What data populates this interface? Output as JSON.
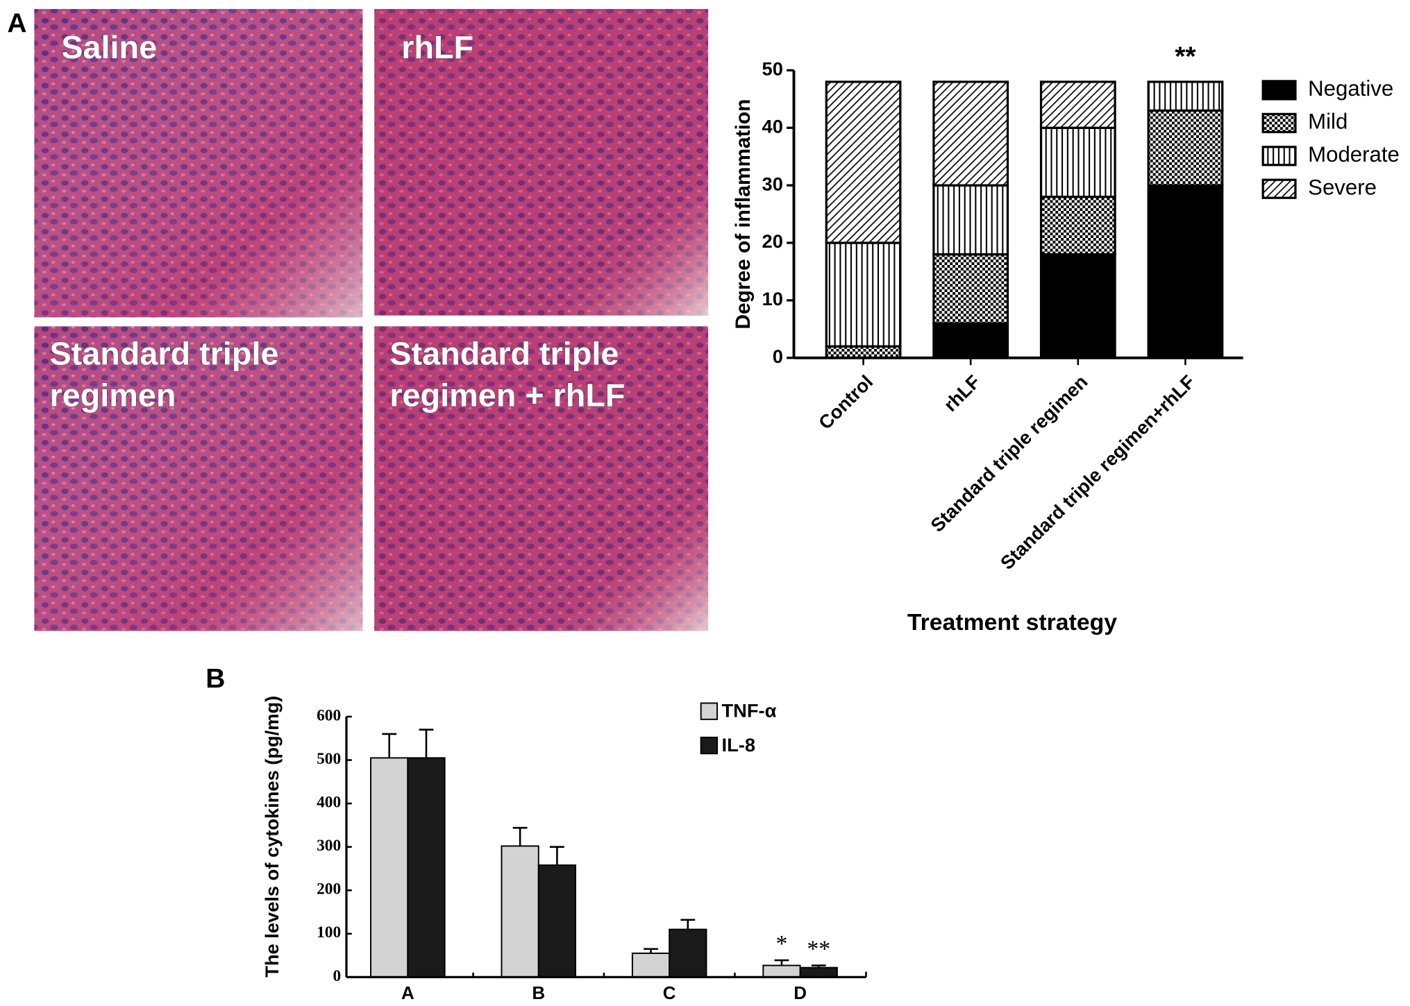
{
  "figure": {
    "panel_labels": [
      "A",
      "B"
    ],
    "images": [
      {
        "label_lines": [
          "Saline"
        ]
      },
      {
        "label_lines": [
          "rhLF"
        ]
      },
      {
        "label_lines": [
          "Standard triple",
          "regimen"
        ]
      },
      {
        "label_lines": [
          "Standard triple",
          "regimen  + rhLF"
        ]
      }
    ]
  },
  "chart_data": [
    {
      "type": "stacked_bar",
      "ylabel": "Degree of inflammation",
      "xlabel": "Treatment strategy",
      "categories": [
        "Control",
        "rhLF",
        "Standard triple regimen",
        "Standard triple regimen+rhLF"
      ],
      "series": [
        {
          "name": "Negative",
          "color": "#000000",
          "pattern": "solid",
          "values": [
            0,
            6,
            18,
            30
          ]
        },
        {
          "name": "Mild",
          "color": "#000000",
          "pattern": "checker",
          "values": [
            2,
            12,
            10,
            13
          ]
        },
        {
          "name": "Moderate",
          "color": "#000000",
          "pattern": "vertical",
          "values": [
            18,
            12,
            12,
            5
          ]
        },
        {
          "name": "Severe",
          "color": "#000000",
          "pattern": "diagonal",
          "values": [
            28,
            18,
            8,
            0
          ]
        }
      ],
      "ylim": [
        0,
        50
      ],
      "yticks": [
        0,
        10,
        20,
        30,
        40,
        50
      ],
      "legend": "right",
      "annotations": [
        {
          "category": "Standard triple regimen+rhLF",
          "text": "**"
        }
      ]
    },
    {
      "type": "grouped_bar",
      "ylabel": "The levels of cytokines (pg/mg)",
      "categories": [
        "A",
        "B",
        "C",
        "D"
      ],
      "series": [
        {
          "name": "TNF-α",
          "color": "#d3d3d3",
          "values": [
            505,
            302,
            55,
            27
          ],
          "errors": [
            55,
            42,
            10,
            12
          ]
        },
        {
          "name": "IL-8",
          "color": "#1a1a1a",
          "values": [
            505,
            258,
            110,
            22
          ],
          "errors": [
            65,
            42,
            22,
            5
          ]
        }
      ],
      "ylim": [
        0,
        600
      ],
      "yticks": [
        0,
        100,
        200,
        300,
        400,
        500,
        600
      ],
      "legend": "top-right",
      "annotations": [
        {
          "category": "D",
          "series": "TNF-α",
          "text": "*"
        },
        {
          "category": "D",
          "series": "IL-8",
          "text": "**"
        }
      ]
    }
  ]
}
